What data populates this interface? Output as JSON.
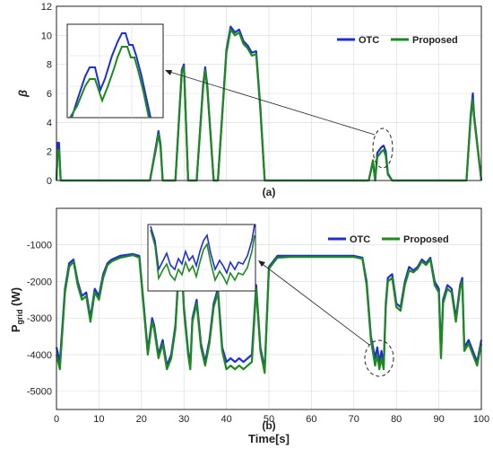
{
  "chart_data": [
    {
      "type": "line",
      "panel_label": "(a)",
      "title": "",
      "xlabel": "",
      "ylabel": "β",
      "xlim": [
        0,
        100
      ],
      "ylim": [
        0,
        12
      ],
      "xticks": [
        0,
        10,
        20,
        30,
        40,
        50,
        60,
        70,
        80,
        90,
        100
      ],
      "yticks": [
        0,
        2,
        4,
        6,
        8,
        10,
        12
      ],
      "grid": true,
      "legend": "top-right",
      "inset": true,
      "series": [
        {
          "name": "OTC",
          "color": "#1f2fd6",
          "x": [
            0,
            0.3,
            0.6,
            1,
            22,
            23.5,
            24,
            24.5,
            25,
            26,
            28,
            29.5,
            30,
            31,
            33,
            34.5,
            35,
            35.5,
            37,
            38,
            40,
            41,
            42,
            43,
            44,
            45,
            46,
            47,
            48,
            49,
            52,
            73.5,
            74.5,
            75,
            75.5,
            76.5,
            77,
            77.5,
            78,
            79,
            96.5,
            97.5,
            98,
            98.3,
            100
          ],
          "y": [
            0,
            2.6,
            2.6,
            0,
            0,
            2.5,
            3.4,
            2.5,
            0,
            0,
            0,
            7.6,
            8.0,
            0,
            0,
            6.5,
            7.8,
            6.5,
            0,
            0,
            9.0,
            10.6,
            10.2,
            10.4,
            9.6,
            9.3,
            8.8,
            8.9,
            5.0,
            0,
            0,
            0,
            1.3,
            0,
            1.9,
            2.3,
            2.4,
            2.0,
            0.5,
            0,
            0,
            4.5,
            6.0,
            4.5,
            0
          ]
        },
        {
          "name": "Proposed",
          "color": "#1e8a1e",
          "x": [
            0,
            0.3,
            0.6,
            1,
            22,
            23.5,
            24,
            24.5,
            25,
            26,
            28,
            29.5,
            30,
            31,
            33,
            34.5,
            35,
            35.5,
            37,
            38,
            40,
            41,
            42,
            43,
            44,
            45,
            46,
            47,
            48,
            49,
            52,
            73.5,
            74.5,
            75,
            75.5,
            76.5,
            77,
            77.5,
            78,
            79,
            96.5,
            97.5,
            98,
            98.3,
            100
          ],
          "y": [
            0,
            2.1,
            2.1,
            0,
            0,
            2.3,
            3.2,
            2.3,
            0,
            0,
            0,
            7.4,
            7.8,
            0,
            0,
            6.3,
            7.6,
            6.3,
            0,
            0,
            8.8,
            10.4,
            10.0,
            10.2,
            9.4,
            9.1,
            8.6,
            8.7,
            4.8,
            0,
            0,
            0,
            1.4,
            0,
            1.6,
            2.0,
            2.1,
            1.7,
            0.4,
            0,
            0,
            4.3,
            5.6,
            4.3,
            0
          ]
        }
      ]
    },
    {
      "type": "line",
      "panel_label": "(b)",
      "title": "",
      "xlabel": "Time[s]",
      "ylabel": "P",
      "ylabel_sub": "grid",
      "ylabel_unit": " (W)",
      "xlim": [
        0,
        100
      ],
      "ylim": [
        -5500,
        0
      ],
      "xticks": [
        0,
        10,
        20,
        30,
        40,
        50,
        60,
        70,
        80,
        90,
        100
      ],
      "yticks": [
        -5000,
        -4000,
        -3000,
        -2000,
        -1000
      ],
      "grid": true,
      "legend": "top-right",
      "inset": true,
      "series": [
        {
          "name": "OTC",
          "color": "#1f2fd6",
          "x": [
            0,
            0.8,
            2,
            3,
            4,
            5,
            6,
            7,
            8,
            9,
            10,
            11,
            12,
            13,
            15,
            18,
            19.5,
            20.5,
            21.5,
            22.5,
            23,
            24,
            25,
            26,
            27,
            28,
            28.8,
            29.5,
            30,
            31,
            31.5,
            32,
            33,
            34,
            35,
            36,
            37,
            38,
            39,
            40,
            41,
            42,
            43,
            44,
            45,
            46,
            47,
            48,
            49,
            50,
            52,
            55,
            60,
            65,
            70,
            72,
            73,
            74,
            75,
            75.5,
            76,
            76.5,
            77,
            77.5,
            78,
            79,
            80,
            81,
            82,
            83,
            84,
            85,
            86,
            87,
            88,
            89,
            90,
            90.5,
            91,
            92,
            93,
            94,
            95,
            95.5,
            96,
            97,
            98,
            99,
            100
          ],
          "y": [
            -3800,
            -4200,
            -2200,
            -1500,
            -1400,
            -2000,
            -2400,
            -2300,
            -3000,
            -2200,
            -2400,
            -1800,
            -1500,
            -1400,
            -1300,
            -1250,
            -1300,
            -2600,
            -3900,
            -3000,
            -3200,
            -4000,
            -3600,
            -4300,
            -4000,
            -3200,
            -1600,
            -1500,
            -2700,
            -3900,
            -4300,
            -3000,
            -2500,
            -3700,
            -4200,
            -3600,
            -2600,
            -2200,
            -3800,
            -4200,
            -4100,
            -4200,
            -4100,
            -4200,
            -4100,
            -4000,
            -2100,
            -3800,
            -4400,
            -1600,
            -1300,
            -1300,
            -1300,
            -1300,
            -1300,
            -1350,
            -2000,
            -3500,
            -4100,
            -3800,
            -4200,
            -3900,
            -4300,
            -2600,
            -1900,
            -1800,
            -2600,
            -2700,
            -2000,
            -1600,
            -1700,
            -1600,
            -1400,
            -1500,
            -1350,
            -2000,
            -2200,
            -4000,
            -2500,
            -2100,
            -2200,
            -3000,
            -2100,
            -1900,
            -3800,
            -3600,
            -3900,
            -4200,
            -3600
          ]
        },
        {
          "name": "Proposed",
          "color": "#1e8a1e",
          "x": [
            0,
            0.8,
            2,
            3,
            4,
            5,
            6,
            7,
            8,
            9,
            10,
            11,
            12,
            13,
            15,
            18,
            19.5,
            20.5,
            21.5,
            22.5,
            23,
            24,
            25,
            26,
            27,
            28,
            28.8,
            29.5,
            30,
            31,
            31.5,
            32,
            33,
            34,
            35,
            36,
            37,
            38,
            39,
            40,
            41,
            42,
            43,
            44,
            45,
            46,
            47,
            48,
            49,
            50,
            52,
            55,
            60,
            65,
            70,
            72,
            73,
            74,
            75,
            75.5,
            76,
            76.5,
            77,
            77.5,
            78,
            79,
            80,
            81,
            82,
            83,
            84,
            85,
            86,
            87,
            88,
            89,
            90,
            90.5,
            91,
            92,
            93,
            94,
            95,
            95.5,
            96,
            97,
            98,
            99,
            100
          ],
          "y": [
            -4000,
            -4400,
            -2300,
            -1600,
            -1450,
            -2100,
            -2500,
            -2400,
            -3100,
            -2300,
            -2500,
            -1900,
            -1550,
            -1450,
            -1350,
            -1280,
            -1350,
            -2700,
            -4000,
            -3100,
            -3300,
            -4100,
            -3700,
            -4400,
            -4100,
            -3300,
            -1700,
            -1550,
            -2800,
            -4000,
            -4400,
            -3100,
            -2600,
            -3800,
            -4300,
            -3700,
            -2700,
            -2300,
            -3900,
            -4400,
            -4300,
            -4400,
            -4300,
            -4400,
            -4300,
            -4200,
            -2200,
            -3900,
            -4500,
            -1650,
            -1350,
            -1330,
            -1330,
            -1330,
            -1330,
            -1380,
            -2100,
            -3600,
            -4300,
            -4000,
            -4400,
            -4100,
            -4400,
            -2700,
            -2000,
            -1900,
            -2700,
            -2800,
            -2100,
            -1700,
            -1750,
            -1650,
            -1450,
            -1550,
            -1400,
            -2100,
            -2300,
            -4100,
            -2600,
            -2200,
            -2300,
            -3100,
            -2200,
            -2000,
            -3900,
            -3700,
            -4000,
            -4300,
            -3700
          ]
        }
      ]
    }
  ]
}
